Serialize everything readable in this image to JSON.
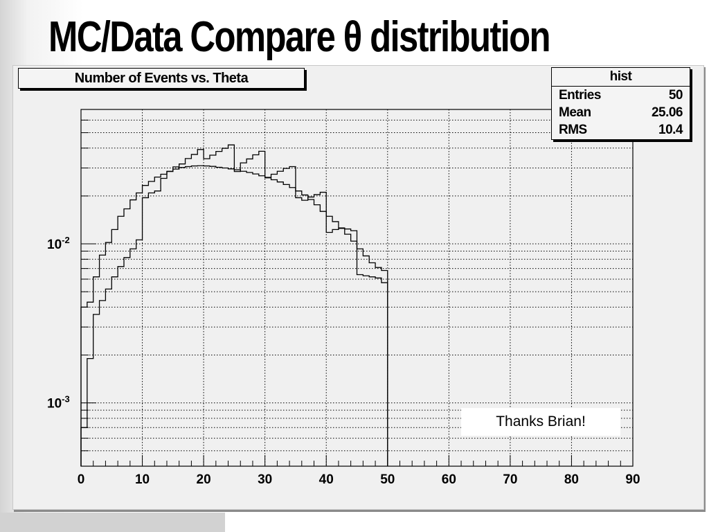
{
  "page": {
    "title": "MC/Data Compare θ distribution"
  },
  "histogram_title": "Number of Events vs. Theta",
  "stats": {
    "name": "hist",
    "rows": [
      {
        "label": "Entries",
        "value": "50"
      },
      {
        "label": "Mean",
        "value": "25.06"
      },
      {
        "label": "RMS",
        "value": "10.4"
      }
    ]
  },
  "annotation": "Thanks Brian!",
  "chart_data": {
    "type": "line",
    "title": "Number of Events vs. Theta",
    "xlabel": "",
    "ylabel": "",
    "xlim": [
      0,
      90
    ],
    "ylim": [
      0.0004,
      0.07
    ],
    "y_scale": "log",
    "grid": true,
    "x_ticks": [
      0,
      10,
      20,
      30,
      40,
      50,
      60,
      70,
      80,
      90
    ],
    "y_ticks": [
      {
        "value": 0.01,
        "base": "10",
        "exp": "-2"
      },
      {
        "value": 0.001,
        "base": "10",
        "exp": "-3"
      }
    ],
    "bin_edges": [
      0,
      1,
      2,
      3,
      4,
      5,
      6,
      7,
      8,
      9,
      10,
      11,
      12,
      13,
      14,
      15,
      16,
      17,
      18,
      19,
      20,
      21,
      22,
      23,
      24,
      25,
      26,
      27,
      28,
      29,
      30,
      31,
      32,
      33,
      34,
      35,
      36,
      37,
      38,
      39,
      40,
      41,
      42,
      43,
      44,
      45,
      46,
      47,
      48,
      49,
      50
    ],
    "series": [
      {
        "values": [
          0.004,
          0.0043,
          0.0062,
          0.0085,
          0.0102,
          0.0123,
          0.0149,
          0.0166,
          0.0189,
          0.0209,
          0.0233,
          0.0247,
          0.0263,
          0.0274,
          0.0285,
          0.0295,
          0.0302,
          0.0306,
          0.0309,
          0.031,
          0.0309,
          0.0307,
          0.0303,
          0.03,
          0.0296,
          0.0292,
          0.0286,
          0.0281,
          0.0275,
          0.0268,
          0.026,
          0.0253,
          0.0245,
          0.0236,
          0.0226,
          0.0215,
          0.0203,
          0.019,
          0.0176,
          0.016,
          0.0149,
          0.0138,
          0.0126,
          0.0115,
          0.0104,
          0.0093,
          0.0084,
          0.0076,
          0.0071,
          0.0068
        ]
      },
      {
        "values": [
          0.0007,
          0.0019,
          0.0036,
          0.0044,
          0.0052,
          0.0062,
          0.0072,
          0.0082,
          0.0093,
          0.0106,
          0.0195,
          0.0209,
          0.0215,
          0.0258,
          0.0286,
          0.0305,
          0.0318,
          0.0344,
          0.0365,
          0.0392,
          0.0343,
          0.0361,
          0.0381,
          0.0399,
          0.0419,
          0.0285,
          0.0323,
          0.0342,
          0.0363,
          0.0382,
          0.0262,
          0.0274,
          0.0286,
          0.0298,
          0.0306,
          0.0195,
          0.0188,
          0.0197,
          0.0204,
          0.0211,
          0.0118,
          0.0123,
          0.0125,
          0.0124,
          0.0121,
          0.0064,
          0.0063,
          0.0062,
          0.0061,
          0.0057
        ]
      }
    ]
  }
}
